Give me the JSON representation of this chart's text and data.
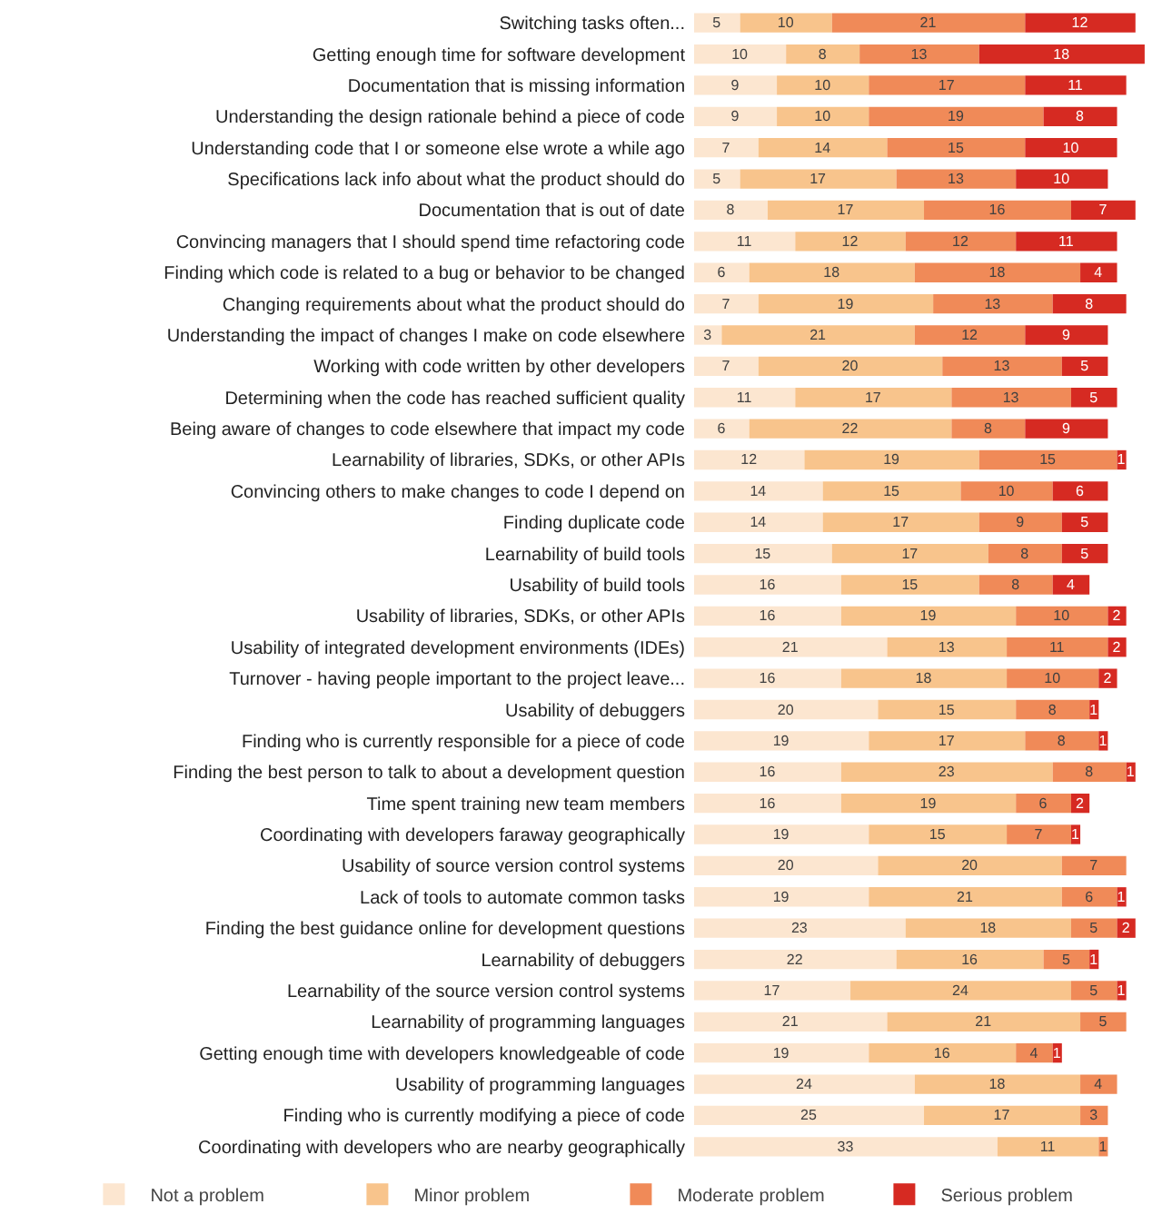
{
  "chart_data": {
    "type": "bar",
    "orientation": "horizontal",
    "stacked": true,
    "data_labels": true,
    "legend": "bottom",
    "categories": [
      "Switching tasks often...",
      "Getting enough time for software development",
      "Documentation that is missing information",
      "Understanding the design rationale behind a piece of code",
      "Understanding code that I or someone else wrote a while ago",
      "Specifications lack info about what the product should do",
      "Documentation that is out of date",
      "Convincing managers that I should spend time refactoring code",
      "Finding which code is related to a bug or behavior to be changed",
      "Changing requirements about what the product should do",
      "Understanding the impact of changes I make on code elsewhere",
      "Working with code written by other developers",
      "Determining when the code has reached sufficient quality",
      "Being aware of changes to code elsewhere that impact my code",
      "Learnability of libraries, SDKs, or other APIs",
      "Convincing others to make changes to code I depend on",
      "Finding duplicate code",
      "Learnability of build tools",
      "Usability of build tools",
      "Usability of libraries, SDKs, or other APIs",
      "Usability of integrated development environments (IDEs)",
      "Turnover - having people important to the project leave...",
      "Usability of debuggers",
      "Finding who is currently responsible for a piece of code",
      "Finding the best person to talk to about a development question",
      "Time spent training new team members",
      "Coordinating with developers faraway geographically",
      "Usability of source version control systems",
      "Lack of tools to automate common tasks",
      "Finding the best guidance online for development questions",
      "Learnability of debuggers",
      "Learnability of the source version control systems",
      "Learnability of programming languages",
      "Getting enough time with developers knowledgeable of code",
      "Usability of programming languages",
      "Finding who is currently modifying a piece of code",
      "Coordinating with developers who are nearby geographically"
    ],
    "series": [
      {
        "name": "Not a problem",
        "color": "#fce6d0",
        "values": [
          5,
          10,
          9,
          9,
          7,
          5,
          8,
          11,
          6,
          7,
          3,
          7,
          11,
          6,
          12,
          14,
          14,
          15,
          16,
          16,
          21,
          16,
          20,
          19,
          16,
          16,
          19,
          20,
          19,
          23,
          22,
          17,
          21,
          19,
          24,
          25,
          33
        ]
      },
      {
        "name": "Minor problem",
        "color": "#f8c48c",
        "values": [
          10,
          8,
          10,
          10,
          14,
          17,
          17,
          12,
          18,
          19,
          21,
          20,
          17,
          22,
          19,
          15,
          17,
          17,
          15,
          19,
          13,
          18,
          15,
          17,
          23,
          19,
          15,
          20,
          21,
          18,
          16,
          24,
          21,
          16,
          18,
          17,
          11
        ]
      },
      {
        "name": "Moderate problem",
        "color": "#f08a58",
        "values": [
          21,
          13,
          17,
          19,
          15,
          13,
          16,
          12,
          18,
          13,
          12,
          13,
          13,
          8,
          15,
          10,
          9,
          8,
          8,
          10,
          11,
          10,
          8,
          8,
          8,
          6,
          7,
          7,
          6,
          5,
          5,
          5,
          5,
          4,
          4,
          3,
          1
        ]
      },
      {
        "name": "Serious problem",
        "color": "#d62a22",
        "values": [
          12,
          18,
          11,
          8,
          10,
          10,
          7,
          11,
          4,
          8,
          9,
          5,
          5,
          9,
          1,
          6,
          5,
          5,
          4,
          2,
          2,
          2,
          1,
          1,
          1,
          2,
          1,
          null,
          1,
          2,
          1,
          1,
          null,
          1,
          null,
          null,
          null
        ]
      }
    ]
  }
}
